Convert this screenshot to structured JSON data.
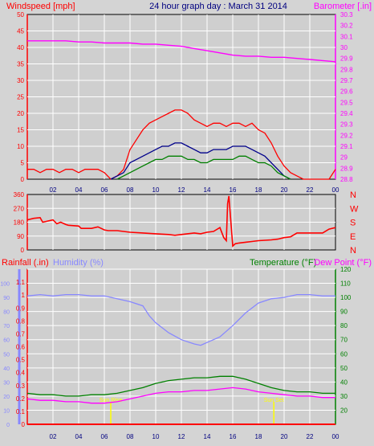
{
  "header": {
    "title": "24 hour graph day : March 31 2014",
    "left_label": "Windspeed [mph]",
    "right_label": "Barometer [.in]"
  },
  "colors": {
    "background": "#d4d4d4",
    "plot_bg": "#cfcfcf",
    "red": "#ff0000",
    "green": "#008000",
    "blue": "#00008b",
    "magenta": "#ff00ff",
    "lavender": "#8888ff",
    "yellow": "#ffff00",
    "grid": "#ffffff",
    "title": "#000080"
  },
  "chart_data": [
    {
      "id": "wind-baro",
      "type": "line",
      "title": "24 hour graph day : March 31 2014",
      "ylabel": "Windspeed [mph]",
      "y2label": "Barometer [.in]",
      "ylim": [
        0,
        50
      ],
      "y2lim": [
        28.8,
        30.3
      ],
      "yticks": [
        "0",
        "5",
        "10",
        "15",
        "20",
        "25",
        "30",
        "35",
        "40",
        "45",
        "50"
      ],
      "y2ticks": [
        "28.8",
        "28.9",
        "29",
        "29.1",
        "29.2",
        "29.3",
        "29.4",
        "29.5",
        "29.6",
        "29.7",
        "29.8",
        "29.9",
        "30",
        "30.1",
        "30.2",
        "30.3"
      ],
      "xticks": [
        "02",
        "04",
        "06",
        "08",
        "10",
        "12",
        "14",
        "16",
        "18",
        "20",
        "22",
        "00"
      ],
      "grid": true,
      "series": [
        {
          "role": "gust",
          "color": "#ff0000",
          "x": [
            0,
            0.5,
            1,
            1.5,
            2,
            2.5,
            3,
            3.5,
            4,
            4.5,
            5,
            5.5,
            6,
            6.5,
            7,
            7.5,
            8,
            8.5,
            9,
            9.5,
            10,
            10.5,
            11,
            11.5,
            12,
            12.5,
            13,
            13.5,
            14,
            14.5,
            15,
            15.5,
            16,
            16.5,
            17,
            17.5,
            18,
            18.5,
            19,
            19.5,
            20,
            20.5,
            21,
            21.5,
            22,
            22.5,
            23,
            23.5,
            24
          ],
          "values": [
            3,
            3,
            2,
            3,
            3,
            2,
            3,
            3,
            2,
            3,
            3,
            3,
            2,
            0,
            1,
            3,
            9,
            12,
            15,
            17,
            18,
            19,
            20,
            21,
            21,
            20,
            18,
            17,
            16,
            17,
            17,
            16,
            17,
            17,
            16,
            17,
            15,
            14,
            11,
            7,
            4,
            2,
            1,
            0,
            0,
            0,
            0,
            0,
            3
          ]
        },
        {
          "role": "average",
          "color": "#00008b",
          "x": [
            6.5,
            7,
            7.5,
            8,
            8.5,
            9,
            9.5,
            10,
            10.5,
            11,
            11.5,
            12,
            12.5,
            13,
            13.5,
            14,
            14.5,
            15,
            15.5,
            16,
            16.5,
            17,
            17.5,
            18,
            18.5,
            19,
            19.5,
            20,
            20.5
          ],
          "values": [
            0,
            1,
            2,
            5,
            6,
            7,
            8,
            9,
            10,
            10,
            11,
            11,
            10,
            9,
            8,
            8,
            9,
            9,
            9,
            10,
            10,
            10,
            9,
            8,
            7,
            5,
            3,
            1,
            0
          ]
        },
        {
          "role": "wind",
          "color": "#008000",
          "x": [
            7,
            7.5,
            8,
            8.5,
            9,
            9.5,
            10,
            10.5,
            11,
            11.5,
            12,
            12.5,
            13,
            13.5,
            14,
            14.5,
            15,
            15.5,
            16,
            16.5,
            17,
            17.5,
            18,
            18.5,
            19,
            19.5,
            20,
            20.5
          ],
          "values": [
            0,
            1,
            2,
            3,
            4,
            5,
            6,
            6,
            7,
            7,
            7,
            6,
            6,
            5,
            5,
            6,
            6,
            6,
            6,
            7,
            7,
            6,
            5,
            5,
            4,
            2,
            1,
            0
          ]
        },
        {
          "role": "barometer",
          "axis": "right",
          "color": "#ff00ff",
          "x": [
            0,
            1,
            2,
            3,
            4,
            5,
            6,
            7,
            8,
            9,
            10,
            11,
            12,
            13,
            14,
            15,
            16,
            17,
            18,
            19,
            20,
            21,
            22,
            23,
            24
          ],
          "values": [
            30.06,
            30.06,
            30.06,
            30.06,
            30.05,
            30.05,
            30.04,
            30.04,
            30.04,
            30.03,
            30.03,
            30.02,
            30.01,
            29.99,
            29.97,
            29.95,
            29.93,
            29.92,
            29.92,
            29.91,
            29.91,
            29.9,
            29.89,
            29.88,
            29.87
          ]
        }
      ]
    },
    {
      "id": "direction",
      "type": "line",
      "ylim": [
        0,
        360
      ],
      "yticks": [
        "0",
        "90",
        "180",
        "270",
        "360"
      ],
      "y2ticks": [
        "N",
        "W",
        "S",
        "E",
        "N"
      ],
      "xticks": [],
      "grid": true,
      "series": [
        {
          "role": "direction",
          "color": "#ff0000",
          "x": [
            0,
            0.5,
            1,
            1.2,
            2,
            2.3,
            2.6,
            3,
            3.2,
            4,
            4.2,
            5,
            5.5,
            6,
            6.3,
            7,
            8,
            9,
            10,
            11,
            11.5,
            12,
            13,
            13.5,
            14,
            14.5,
            15,
            15.3,
            15.5,
            15.6,
            15.7,
            16,
            16.2,
            16.5,
            17,
            17.5,
            18,
            19,
            19.5,
            20,
            20.5,
            21,
            22,
            23,
            23.5,
            24
          ],
          "values": [
            195,
            205,
            210,
            180,
            195,
            170,
            180,
            165,
            160,
            155,
            140,
            140,
            150,
            130,
            125,
            125,
            115,
            110,
            105,
            100,
            95,
            100,
            110,
            105,
            115,
            120,
            145,
            80,
            60,
            300,
            350,
            25,
            40,
            45,
            50,
            55,
            60,
            65,
            70,
            80,
            85,
            110,
            110,
            110,
            135,
            145
          ]
        }
      ]
    },
    {
      "id": "rain-hum-temp",
      "type": "line",
      "ylabel": "Rainfall (.in)",
      "ylabel2": "Humidity (%)",
      "y2label": "Temperature (°F)",
      "y2label2": "Dew Point (°F)",
      "ylim": [
        0,
        1.2
      ],
      "y2lim": [
        10,
        120
      ],
      "rain_ticks": [
        "0",
        "0.1",
        "0.2",
        "0.3",
        "0.4",
        "0.5",
        "0.6",
        "0.7",
        "0.8",
        "0.9",
        "1",
        "1.1"
      ],
      "hum_ticks": [
        "0",
        "10",
        "20",
        "30",
        "40",
        "50",
        "60",
        "70",
        "80",
        "90",
        "100"
      ],
      "y2ticks": [
        "20",
        "30",
        "40",
        "50",
        "60",
        "70",
        "80",
        "90",
        "100",
        "110",
        "120"
      ],
      "xticks": [
        "02",
        "04",
        "06",
        "08",
        "10",
        "12",
        "14",
        "16",
        "18",
        "20",
        "22",
        "00"
      ],
      "grid": true,
      "annotations": [
        {
          "text": "Sun Rise",
          "x": 6.5,
          "color": "#ffff00"
        },
        {
          "text": "Sun Set",
          "x": 19.2,
          "color": "#ffff00"
        }
      ],
      "series": [
        {
          "role": "humidity",
          "axis": "humidity",
          "color": "#8888ff",
          "x": [
            0,
            1,
            2,
            3,
            4,
            5,
            6,
            7,
            8,
            9,
            9.5,
            10,
            11,
            12,
            13,
            13.5,
            14,
            15,
            16,
            17,
            18,
            19,
            20,
            21,
            22,
            23,
            24
          ],
          "values": [
            91,
            92,
            91,
            92,
            92,
            91,
            91,
            89,
            87,
            84,
            77,
            72,
            65,
            60,
            57,
            56,
            58,
            62,
            70,
            79,
            86,
            89,
            90,
            92,
            92,
            91,
            91
          ]
        },
        {
          "role": "temperature",
          "axis": "right",
          "color": "#008000",
          "x": [
            0,
            1,
            2,
            3,
            4,
            5,
            6,
            7,
            8,
            9,
            10,
            11,
            12,
            13,
            14,
            15,
            16,
            17,
            18,
            19,
            20,
            21,
            22,
            23,
            24
          ],
          "values": [
            32,
            31,
            31,
            30,
            30,
            31,
            31,
            32,
            34,
            36,
            39,
            41,
            42,
            43,
            43,
            44,
            44,
            42,
            39,
            36,
            34,
            33,
            33,
            32,
            32
          ]
        },
        {
          "role": "dewpoint",
          "axis": "right",
          "color": "#ff00ff",
          "x": [
            0,
            1,
            2,
            3,
            4,
            5,
            6,
            7,
            8,
            9,
            10,
            11,
            12,
            13,
            14,
            15,
            16,
            17,
            18,
            19,
            20,
            21,
            22,
            23,
            24
          ],
          "values": [
            28,
            27,
            27,
            26,
            26,
            25,
            25,
            26,
            28,
            30,
            32,
            33,
            33,
            34,
            34,
            35,
            36,
            35,
            33,
            32,
            31,
            30,
            30,
            29,
            29
          ]
        },
        {
          "role": "rainfall",
          "axis": "rain",
          "color": "#ff0000",
          "x": [
            0,
            24
          ],
          "values": [
            0,
            0
          ]
        }
      ]
    }
  ]
}
